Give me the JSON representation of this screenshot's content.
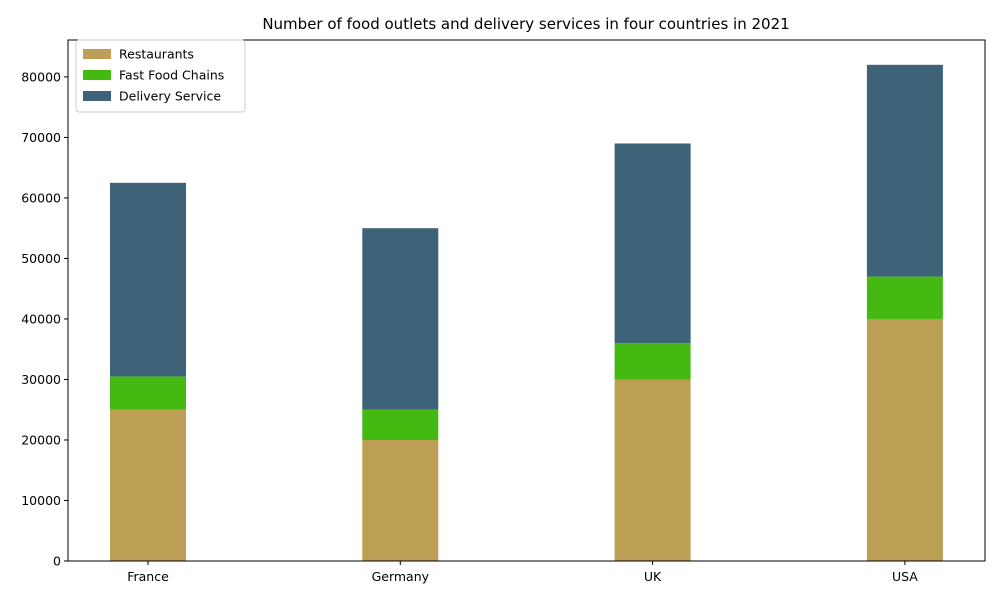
{
  "chart_data": {
    "type": "bar",
    "stacked": true,
    "title": "Number of food outlets and delivery services in four countries in 2021",
    "xlabel": "",
    "ylabel": "",
    "categories": [
      "France",
      "Germany",
      "UK",
      "USA"
    ],
    "series": [
      {
        "name": "Restaurants",
        "color": "#bc9e55",
        "values": [
          25000,
          20000,
          30000,
          40000
        ]
      },
      {
        "name": "Fast Food Chains",
        "color": "#44b912",
        "values": [
          5500,
          5000,
          6000,
          7000
        ]
      },
      {
        "name": "Delivery Service",
        "color": "#3e6278",
        "values": [
          32000,
          30000,
          33000,
          35000
        ]
      }
    ],
    "ylim": [
      0,
      86100
    ],
    "yticks": [
      0,
      10000,
      20000,
      30000,
      40000,
      50000,
      60000,
      70000,
      80000
    ],
    "grid": false,
    "legend_position": "top-left"
  }
}
